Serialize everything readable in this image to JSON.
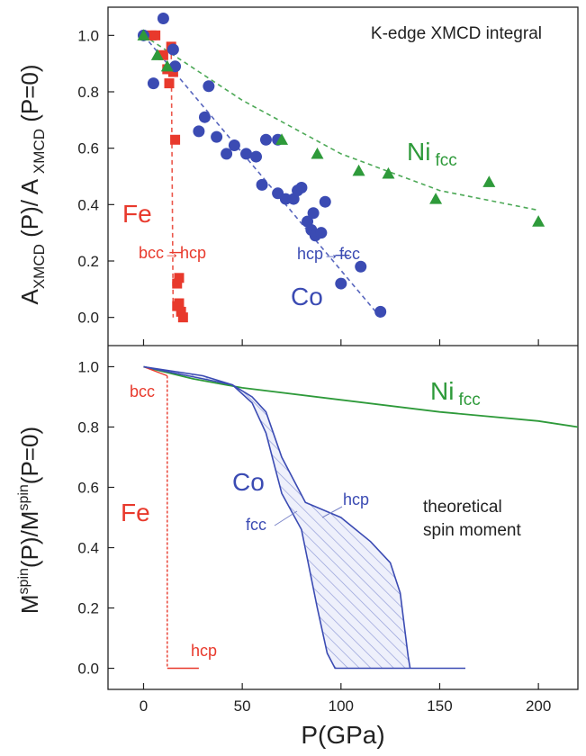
{
  "colors": {
    "fe": "#e8392c",
    "co": "#3b4bb3",
    "ni": "#2e9a3a",
    "axis": "#222222"
  },
  "chart_data": [
    {
      "type": "scatter",
      "panel": "top",
      "title": "K-edge XMCD integral",
      "ylabel": {
        "main": "A",
        "sub1": "XMCD",
        "mid": " (P)/ A ",
        "sub2": "XMCD",
        "tail": " (P=0)"
      },
      "xlim": [
        -18,
        220
      ],
      "ylim": [
        -0.1,
        1.1
      ],
      "yticks": [
        "0.0",
        "0.2",
        "0.4",
        "0.6",
        "0.8",
        "1.0"
      ],
      "series": [
        {
          "name": "Fe",
          "marker": "square",
          "points": [
            [
              4,
              1.0
            ],
            [
              6,
              1.0
            ],
            [
              10,
              0.93
            ],
            [
              12,
              0.88
            ],
            [
              13,
              0.83
            ],
            [
              14,
              0.96
            ],
            [
              15,
              0.87
            ],
            [
              16,
              0.63
            ],
            [
              17,
              0.12
            ],
            [
              18,
              0.14
            ],
            [
              17,
              0.04
            ],
            [
              18,
              0.05
            ],
            [
              19,
              0.02
            ],
            [
              20,
              0.0
            ]
          ],
          "trend": [
            [
              14,
              0.96
            ],
            [
              15,
              0.0
            ]
          ],
          "transition_label": "bcc→hcp"
        },
        {
          "name": "Co",
          "marker": "circle",
          "points": [
            [
              0,
              1.0
            ],
            [
              5,
              0.83
            ],
            [
              10,
              1.06
            ],
            [
              15,
              0.95
            ],
            [
              16,
              0.89
            ],
            [
              28,
              0.66
            ],
            [
              31,
              0.71
            ],
            [
              33,
              0.82
            ],
            [
              37,
              0.64
            ],
            [
              42,
              0.58
            ],
            [
              46,
              0.61
            ],
            [
              52,
              0.58
            ],
            [
              57,
              0.57
            ],
            [
              62,
              0.63
            ],
            [
              60,
              0.47
            ],
            [
              68,
              0.63
            ],
            [
              68,
              0.44
            ],
            [
              72,
              0.42
            ],
            [
              76,
              0.42
            ],
            [
              78,
              0.45
            ],
            [
              80,
              0.46
            ],
            [
              83,
              0.34
            ],
            [
              85,
              0.31
            ],
            [
              86,
              0.37
            ],
            [
              87,
              0.29
            ],
            [
              90,
              0.3
            ],
            [
              92,
              0.41
            ],
            [
              100,
              0.12
            ],
            [
              110,
              0.18
            ],
            [
              120,
              0.02
            ]
          ],
          "trend": [
            [
              0,
              1.0
            ],
            [
              120,
              0.0
            ]
          ],
          "transition_label": "hcp→fcc"
        },
        {
          "name": "Ni",
          "sub": "fcc",
          "marker": "triangle",
          "points": [
            [
              0,
              1.0
            ],
            [
              7,
              0.93
            ],
            [
              12,
              0.89
            ],
            [
              70,
              0.63
            ],
            [
              88,
              0.58
            ],
            [
              109,
              0.52
            ],
            [
              124,
              0.51
            ],
            [
              148,
              0.42
            ],
            [
              175,
              0.48
            ],
            [
              200,
              0.34
            ]
          ],
          "trend": [
            [
              0,
              1.0
            ],
            [
              50,
              0.77
            ],
            [
              100,
              0.58
            ],
            [
              150,
              0.45
            ],
            [
              200,
              0.38
            ]
          ]
        }
      ]
    },
    {
      "type": "line",
      "panel": "bottom",
      "xlabel": "P(GPa)",
      "ylabel": {
        "p1": "M",
        "s1": "spin",
        "p2": "(P)/M",
        "s2": "spin",
        "p3": "(P=0)"
      },
      "xlim": [
        -18,
        220
      ],
      "ylim": [
        -0.07,
        1.07
      ],
      "xticks": [
        "0",
        "50",
        "100",
        "150",
        "200"
      ],
      "yticks": [
        "0.0",
        "0.2",
        "0.4",
        "0.6",
        "0.8",
        "1.0"
      ],
      "series": [
        {
          "name": "Ni",
          "sub": "fcc",
          "points": [
            [
              0,
              1.0
            ],
            [
              25,
              0.96
            ],
            [
              50,
              0.93
            ],
            [
              100,
              0.89
            ],
            [
              150,
              0.85
            ],
            [
              200,
              0.82
            ],
            [
              220,
              0.8
            ]
          ]
        },
        {
          "name": "Fe",
          "segments": [
            [
              [
                0,
                1.0
              ],
              [
                12,
                0.97
              ]
            ],
            [
              [
                12,
                0.97
              ],
              [
                12,
                0.0
              ]
            ],
            [
              [
                12,
                0.0
              ],
              [
                28,
                0.0
              ]
            ]
          ],
          "label_bcc": "bcc",
          "label_hcp": "hcp"
        },
        {
          "name": "Co fcc",
          "label": "fcc",
          "points": [
            [
              0,
              1.0
            ],
            [
              30,
              0.97
            ],
            [
              45,
              0.94
            ],
            [
              55,
              0.88
            ],
            [
              62,
              0.78
            ],
            [
              70,
              0.58
            ],
            [
              80,
              0.46
            ],
            [
              88,
              0.2
            ],
            [
              93,
              0.05
            ],
            [
              97,
              0.0
            ],
            [
              163,
              0.0
            ]
          ]
        },
        {
          "name": "Co hcp",
          "label": "hcp",
          "points": [
            [
              0,
              1.0
            ],
            [
              30,
              0.96
            ],
            [
              45,
              0.94
            ],
            [
              55,
              0.9
            ],
            [
              62,
              0.85
            ],
            [
              70,
              0.7
            ],
            [
              82,
              0.55
            ],
            [
              100,
              0.5
            ],
            [
              115,
              0.42
            ],
            [
              125,
              0.35
            ],
            [
              130,
              0.25
            ],
            [
              134,
              0.04
            ],
            [
              135,
              0.0
            ]
          ]
        }
      ],
      "labels": {
        "co": "Co",
        "fe": "Fe",
        "note1": "theoretical",
        "note2": "spin moment"
      }
    }
  ]
}
